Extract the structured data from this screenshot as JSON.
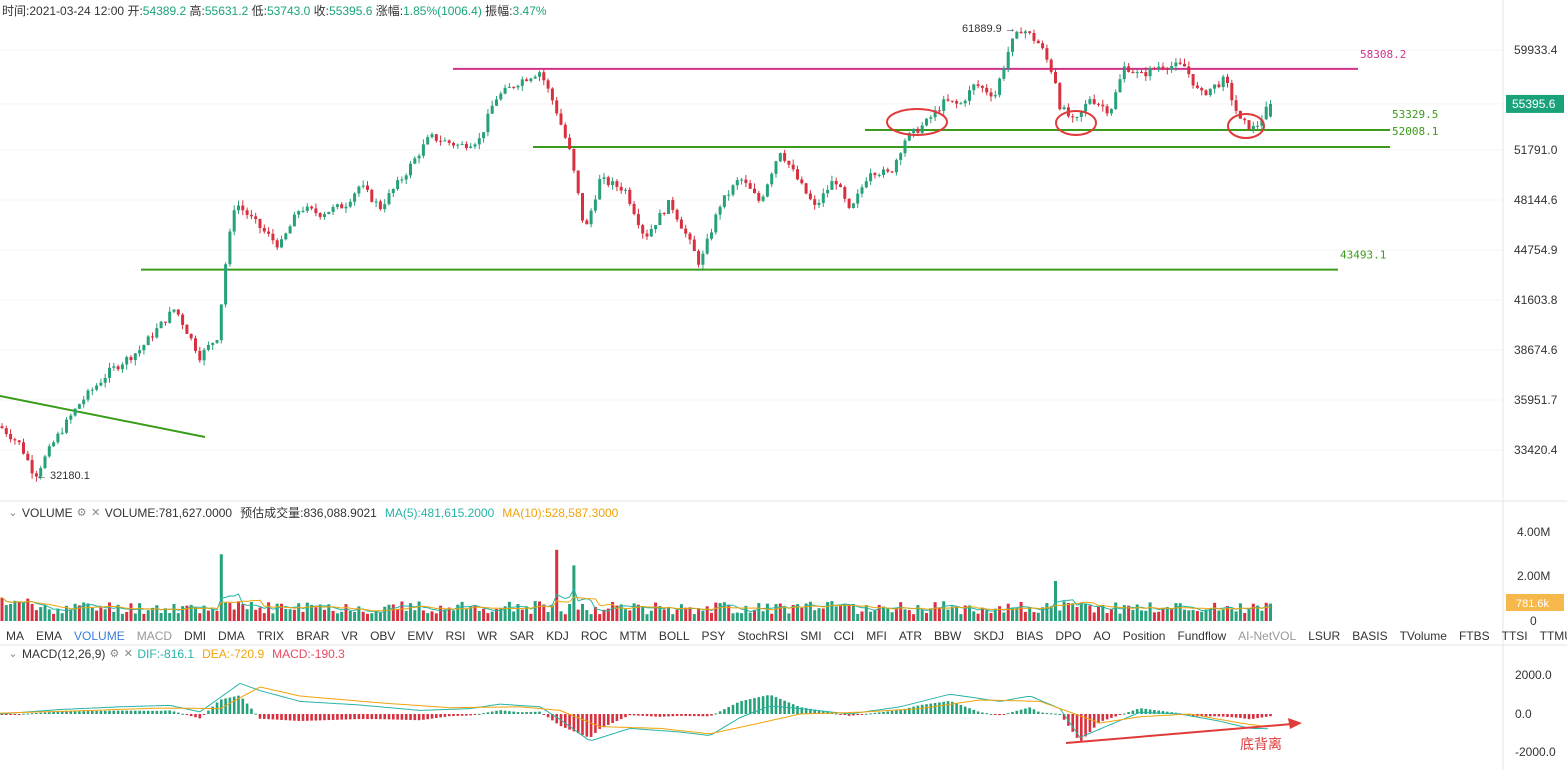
{
  "header": {
    "time_label": "时间:",
    "time": "2021-03-24 12:00",
    "open_label": "开:",
    "open": "54389.2",
    "high_label": "高:",
    "high": "55631.2",
    "low_label": "低:",
    "low": "53743.0",
    "close_label": "收:",
    "close": "55395.6",
    "change_label": "涨幅:",
    "change": "1.85%(1006.4)",
    "amp_label": "振幅:",
    "amp": "3.47%"
  },
  "volume_legend": {
    "name": "VOLUME",
    "value": "VOLUME:781,627.0000",
    "est": "预估成交量:836,088.9021",
    "ma5": "MA(5):481,615.2000",
    "ma10": "MA(10):528,587.3000"
  },
  "macd_legend": {
    "name": "MACD(12,26,9)",
    "dif": "DIF:-816.1",
    "dea": "DEA:-720.9",
    "macd": "MACD:-190.3"
  },
  "indicator_tabs": [
    {
      "label": "MA",
      "state": "normal"
    },
    {
      "label": "EMA",
      "state": "normal"
    },
    {
      "label": "VOLUME",
      "state": "active"
    },
    {
      "label": "MACD",
      "state": "muted"
    },
    {
      "label": "DMI",
      "state": "normal"
    },
    {
      "label": "DMA",
      "state": "normal"
    },
    {
      "label": "TRIX",
      "state": "normal"
    },
    {
      "label": "BRAR",
      "state": "normal"
    },
    {
      "label": "VR",
      "state": "normal"
    },
    {
      "label": "OBV",
      "state": "normal"
    },
    {
      "label": "EMV",
      "state": "normal"
    },
    {
      "label": "RSI",
      "state": "normal"
    },
    {
      "label": "WR",
      "state": "normal"
    },
    {
      "label": "SAR",
      "state": "normal"
    },
    {
      "label": "KDJ",
      "state": "normal"
    },
    {
      "label": "ROC",
      "state": "normal"
    },
    {
      "label": "MTM",
      "state": "normal"
    },
    {
      "label": "BOLL",
      "state": "normal"
    },
    {
      "label": "PSY",
      "state": "normal"
    },
    {
      "label": "StochRSI",
      "state": "normal"
    },
    {
      "label": "SMI",
      "state": "normal"
    },
    {
      "label": "CCI",
      "state": "normal"
    },
    {
      "label": "MFI",
      "state": "normal"
    },
    {
      "label": "ATR",
      "state": "normal"
    },
    {
      "label": "BBW",
      "state": "normal"
    },
    {
      "label": "SKDJ",
      "state": "normal"
    },
    {
      "label": "BIAS",
      "state": "normal"
    },
    {
      "label": "DPO",
      "state": "normal"
    },
    {
      "label": "AO",
      "state": "normal"
    },
    {
      "label": "Position",
      "state": "normal"
    },
    {
      "label": "Fundflow",
      "state": "normal"
    },
    {
      "label": "AI-NetVOL",
      "state": "muted"
    },
    {
      "label": "LSUR",
      "state": "normal"
    },
    {
      "label": "BASIS",
      "state": "normal"
    },
    {
      "label": "TVolume",
      "state": "normal"
    },
    {
      "label": "FTBS",
      "state": "normal"
    },
    {
      "label": "TTSI",
      "state": "normal"
    },
    {
      "label": "TTMU",
      "state": "normal"
    },
    {
      "label": "AI-BSI",
      "state": "muted"
    }
  ],
  "colors": {
    "up": "#26a17b",
    "down": "#d8303f",
    "green_line": "#3a9c1a",
    "magenta_line": "#d0328c",
    "annotation": "#e03a3a",
    "dif": "#26b3a7",
    "dea": "#f0a30a",
    "current_price_bg": "#1aa37a",
    "volume_tag_bg": "#f7b84b"
  },
  "chart_data": [
    {
      "type": "candlestick",
      "title": "",
      "y_ticks": [
        59933.4,
        55395.6,
        51791.0,
        48144.6,
        44754.9,
        41603.8,
        38674.6,
        35951.7,
        33420.4
      ],
      "y_tick_labels": [
        "59933.4",
        "55395.6",
        "51791.0",
        "48144.6",
        "44754.9",
        "41603.8",
        "38674.6",
        "35951.7",
        "33420.4"
      ],
      "ylim": [
        30300,
        64000
      ],
      "scale": "log",
      "current_price": "55395.6",
      "price_path": [
        [
          0,
          34600
        ],
        [
          20,
          33700
        ],
        [
          35,
          32180
        ],
        [
          55,
          33900
        ],
        [
          80,
          35800
        ],
        [
          110,
          37500
        ],
        [
          140,
          38700
        ],
        [
          175,
          41100
        ],
        [
          200,
          38300
        ],
        [
          218,
          39500
        ],
        [
          225,
          43600
        ],
        [
          235,
          48000
        ],
        [
          265,
          45900
        ],
        [
          280,
          45000
        ],
        [
          300,
          47600
        ],
        [
          320,
          47200
        ],
        [
          345,
          47800
        ],
        [
          360,
          49200
        ],
        [
          380,
          47600
        ],
        [
          405,
          50000
        ],
        [
          430,
          52800
        ],
        [
          460,
          52100
        ],
        [
          480,
          52600
        ],
        [
          495,
          55800
        ],
        [
          520,
          57300
        ],
        [
          540,
          58100
        ],
        [
          555,
          55200
        ],
        [
          570,
          51600
        ],
        [
          585,
          45900
        ],
        [
          600,
          49600
        ],
        [
          625,
          48900
        ],
        [
          645,
          45600
        ],
        [
          670,
          48000
        ],
        [
          700,
          43800
        ],
        [
          720,
          47800
        ],
        [
          740,
          49700
        ],
        [
          760,
          48000
        ],
        [
          780,
          51800
        ],
        [
          800,
          49300
        ],
        [
          815,
          47600
        ],
        [
          835,
          49700
        ],
        [
          850,
          47200
        ],
        [
          870,
          50300
        ],
        [
          890,
          50000
        ],
        [
          905,
          52600
        ],
        [
          925,
          53800
        ],
        [
          945,
          55600
        ],
        [
          960,
          55300
        ],
        [
          975,
          57000
        ],
        [
          995,
          56100
        ],
        [
          1010,
          60300
        ],
        [
          1022,
          61889.9
        ],
        [
          1040,
          60400
        ],
        [
          1055,
          57500
        ],
        [
          1060,
          55200
        ],
        [
          1075,
          53800
        ],
        [
          1090,
          55900
        ],
        [
          1110,
          54800
        ],
        [
          1125,
          58600
        ],
        [
          1140,
          57700
        ],
        [
          1160,
          58600
        ],
        [
          1185,
          58500
        ],
        [
          1200,
          56100
        ],
        [
          1225,
          57400
        ],
        [
          1240,
          54000
        ],
        [
          1255,
          53400
        ],
        [
          1270,
          55395.6
        ]
      ],
      "horizontal_levels": [
        {
          "label": "58308.2",
          "value": 58308.2,
          "color": "magenta"
        },
        {
          "label": "53329.5",
          "value": 53329.5,
          "color": "green"
        },
        {
          "label": "52008.1",
          "value": 52008.1,
          "color": "green"
        },
        {
          "label": "43493.1",
          "value": 43493.1,
          "color": "green"
        }
      ],
      "extreme_labels": {
        "high": "61889.9",
        "low": "32180.1"
      },
      "marked_points": 3,
      "trendline": {
        "from": [
          -5,
          36000
        ],
        "to": [
          205,
          33600
        ]
      }
    },
    {
      "type": "bar",
      "title": "",
      "y_tick_labels": [
        "4.00M",
        "2.00M",
        "0"
      ],
      "ylim": [
        0,
        4700000
      ],
      "current_volume_tag": "781.6k",
      "notable_spikes": [
        [
          220,
          3000000
        ],
        [
          557,
          3200000
        ],
        [
          576,
          4400000
        ],
        [
          572,
          2500000
        ],
        [
          1055,
          1800000
        ]
      ],
      "series": [
        {
          "values": "about 0.6M per bar"
        },
        {
          "values": "about 0.6M on average"
        }
      ]
    },
    {
      "type": "bar",
      "title": "",
      "y_tick_labels": [
        "2000.0",
        "0.0",
        "-2000.0"
      ],
      "ylim": [
        -2600,
        3000
      ],
      "dif_path": [
        [
          0,
          0
        ],
        [
          60,
          250
        ],
        [
          120,
          400
        ],
        [
          170,
          480
        ],
        [
          200,
          120
        ],
        [
          240,
          1700
        ],
        [
          260,
          1300
        ],
        [
          300,
          700
        ],
        [
          360,
          500
        ],
        [
          420,
          200
        ],
        [
          470,
          300
        ],
        [
          500,
          550
        ],
        [
          540,
          400
        ],
        [
          560,
          -300
        ],
        [
          590,
          -1500
        ],
        [
          630,
          -800
        ],
        [
          680,
          -1000
        ],
        [
          710,
          -1200
        ],
        [
          740,
          -200
        ],
        [
          770,
          450
        ],
        [
          800,
          300
        ],
        [
          850,
          0
        ],
        [
          900,
          400
        ],
        [
          950,
          1100
        ],
        [
          1000,
          700
        ],
        [
          1030,
          1000
        ],
        [
          1060,
          300
        ],
        [
          1080,
          -1300
        ],
        [
          1110,
          -600
        ],
        [
          1140,
          100
        ],
        [
          1180,
          0
        ],
        [
          1220,
          -400
        ],
        [
          1250,
          -800
        ],
        [
          1270,
          -816.1
        ]
      ],
      "dea_path": [
        [
          0,
          50
        ],
        [
          80,
          180
        ],
        [
          160,
          330
        ],
        [
          220,
          300
        ],
        [
          260,
          1500
        ],
        [
          300,
          1000
        ],
        [
          380,
          620
        ],
        [
          450,
          350
        ],
        [
          520,
          400
        ],
        [
          560,
          200
        ],
        [
          600,
          -700
        ],
        [
          660,
          -800
        ],
        [
          710,
          -1100
        ],
        [
          760,
          -500
        ],
        [
          800,
          0
        ],
        [
          860,
          100
        ],
        [
          920,
          300
        ],
        [
          980,
          780
        ],
        [
          1040,
          700
        ],
        [
          1070,
          100
        ],
        [
          1100,
          -500
        ],
        [
          1140,
          -150
        ],
        [
          1190,
          0
        ],
        [
          1240,
          -500
        ],
        [
          1270,
          -720.9
        ]
      ],
      "annotation": "底背离"
    }
  ]
}
